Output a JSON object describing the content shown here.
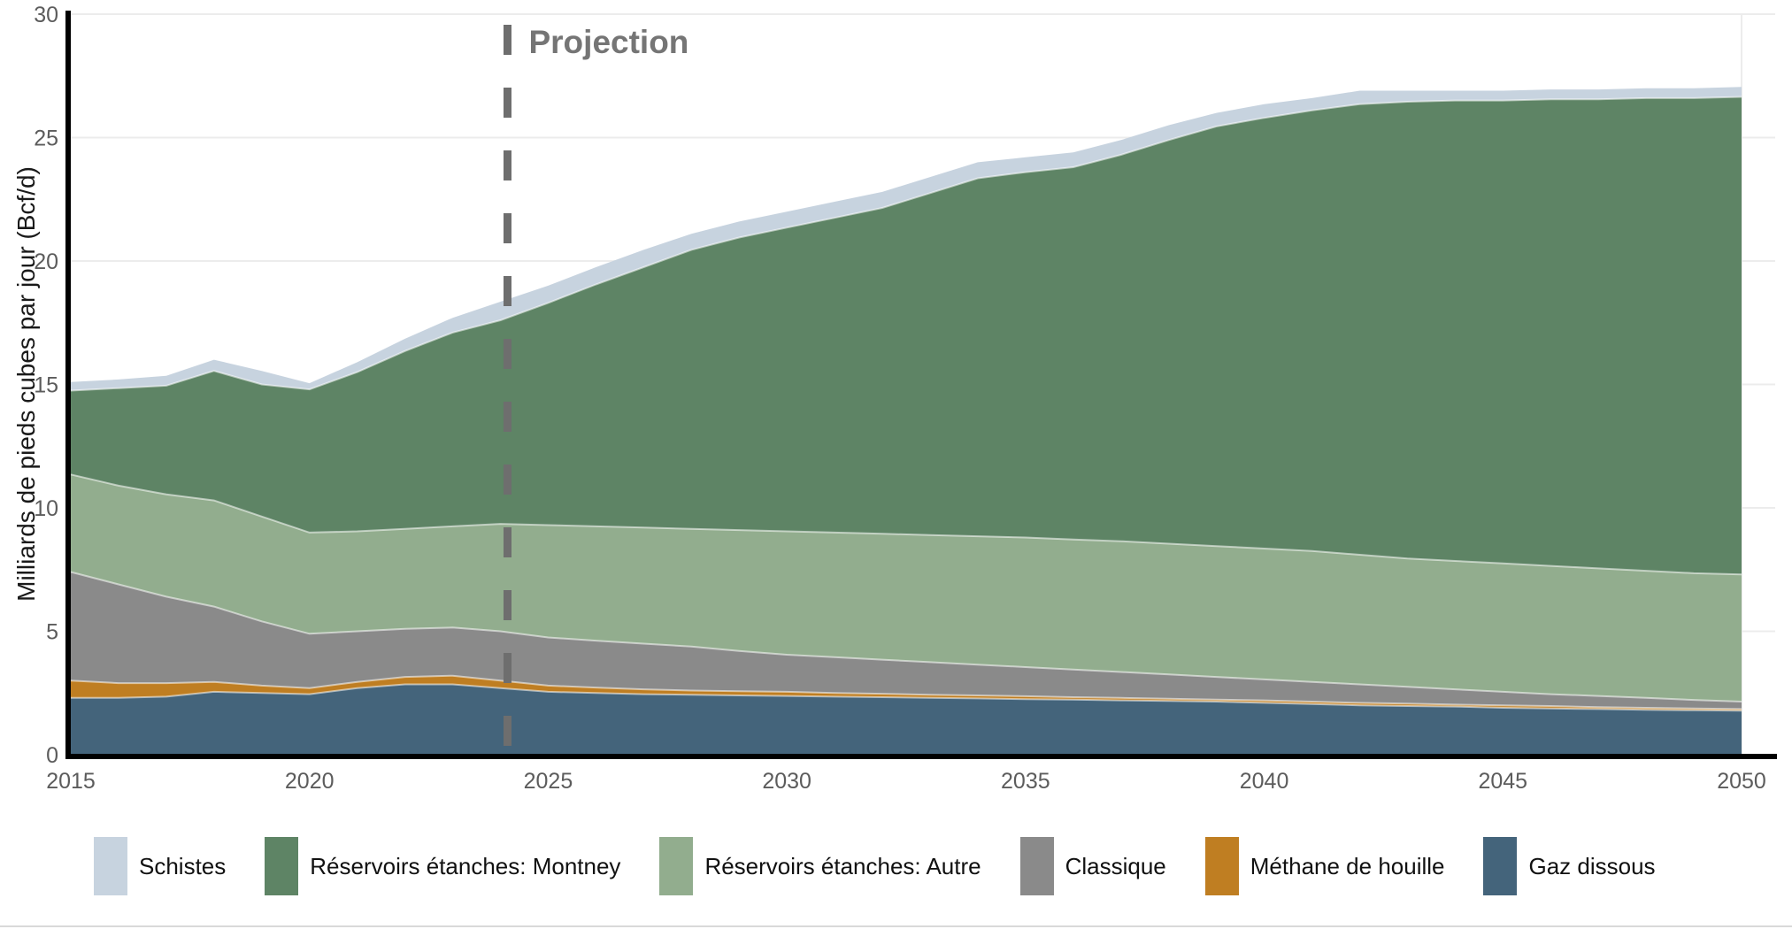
{
  "figure": {
    "ylabel": "Milliards de pieds cubes par jour (Bcf/d)",
    "projection_label": "Projection"
  },
  "chart_data": {
    "type": "area",
    "stacked": true,
    "title": "",
    "xlabel": "",
    "ylabel": "Milliards de pieds cubes par jour (Bcf/d)",
    "ylim": [
      0,
      30
    ],
    "yticks": [
      0,
      5,
      10,
      15,
      20,
      25,
      30
    ],
    "xticks": [
      2015,
      2020,
      2025,
      2030,
      2035,
      2040,
      2045,
      2050
    ],
    "grid": "horizontal",
    "legend_position": "bottom",
    "annotations": [
      {
        "label": "Projection",
        "x": 2024,
        "style": "dashed-vertical-line",
        "color": "#6e6e6e"
      }
    ],
    "x": [
      2015,
      2016,
      2017,
      2018,
      2019,
      2020,
      2021,
      2022,
      2023,
      2024,
      2025,
      2026,
      2027,
      2028,
      2029,
      2030,
      2031,
      2032,
      2033,
      2034,
      2035,
      2036,
      2037,
      2038,
      2039,
      2040,
      2041,
      2042,
      2043,
      2044,
      2045,
      2046,
      2047,
      2048,
      2049,
      2050
    ],
    "series": [
      {
        "id": "gaz-dissous",
        "name": "Gaz dissous",
        "color": "#44647b",
        "values": [
          2.3,
          2.3,
          2.35,
          2.55,
          2.5,
          2.45,
          2.7,
          2.85,
          2.85,
          2.7,
          2.55,
          2.5,
          2.45,
          2.43,
          2.4,
          2.38,
          2.35,
          2.33,
          2.3,
          2.28,
          2.25,
          2.23,
          2.2,
          2.18,
          2.15,
          2.1,
          2.05,
          2.0,
          1.97,
          1.95,
          1.9,
          1.87,
          1.85,
          1.82,
          1.8,
          1.78
        ]
      },
      {
        "id": "methane-de-houille",
        "name": "Méthane de houille",
        "color": "#bf7e22",
        "values": [
          0.7,
          0.6,
          0.55,
          0.4,
          0.3,
          0.25,
          0.25,
          0.3,
          0.35,
          0.3,
          0.25,
          0.22,
          0.2,
          0.17,
          0.17,
          0.17,
          0.15,
          0.14,
          0.13,
          0.12,
          0.12,
          0.1,
          0.1,
          0.09,
          0.08,
          0.1,
          0.1,
          0.1,
          0.1,
          0.08,
          0.1,
          0.1,
          0.08,
          0.08,
          0.07,
          0.07
        ]
      },
      {
        "id": "classique",
        "name": "Classique",
        "color": "#8a8a8a",
        "values": [
          4.4,
          4.0,
          3.5,
          3.05,
          2.6,
          2.2,
          2.05,
          1.95,
          1.95,
          2.0,
          1.95,
          1.9,
          1.85,
          1.78,
          1.63,
          1.5,
          1.45,
          1.38,
          1.32,
          1.25,
          1.18,
          1.12,
          1.05,
          0.98,
          0.92,
          0.85,
          0.8,
          0.75,
          0.68,
          0.62,
          0.55,
          0.48,
          0.45,
          0.4,
          0.35,
          0.3
        ]
      },
      {
        "id": "reservoirs-etanches-autre",
        "name": "Réservoirs étanches: Autre",
        "color": "#92ad8e",
        "values": [
          3.95,
          4.0,
          4.15,
          4.3,
          4.25,
          4.1,
          4.05,
          4.05,
          4.1,
          4.35,
          4.55,
          4.63,
          4.7,
          4.77,
          4.9,
          5.0,
          5.05,
          5.1,
          5.15,
          5.2,
          5.25,
          5.27,
          5.3,
          5.3,
          5.3,
          5.3,
          5.3,
          5.25,
          5.2,
          5.2,
          5.2,
          5.2,
          5.17,
          5.15,
          5.13,
          5.15
        ]
      },
      {
        "id": "reservoirs-etanches-montney",
        "name": "Réservoirs étanches: Montney",
        "color": "#5e8465",
        "values": [
          3.4,
          3.95,
          4.4,
          5.25,
          5.35,
          5.8,
          6.45,
          7.2,
          7.85,
          8.25,
          9.0,
          9.8,
          10.55,
          11.3,
          11.85,
          12.3,
          12.75,
          13.2,
          13.85,
          14.5,
          14.8,
          15.08,
          15.65,
          16.35,
          17.0,
          17.45,
          17.85,
          18.25,
          18.5,
          18.65,
          18.75,
          18.9,
          19.0,
          19.15,
          19.25,
          19.35
        ]
      },
      {
        "id": "schistes",
        "name": "Schistes",
        "color": "#c7d3df",
        "values": [
          0.35,
          0.35,
          0.4,
          0.45,
          0.55,
          0.25,
          0.4,
          0.5,
          0.6,
          0.75,
          0.7,
          0.7,
          0.7,
          0.65,
          0.65,
          0.65,
          0.65,
          0.65,
          0.65,
          0.65,
          0.6,
          0.6,
          0.6,
          0.6,
          0.55,
          0.55,
          0.5,
          0.55,
          0.45,
          0.4,
          0.4,
          0.4,
          0.4,
          0.4,
          0.4,
          0.4
        ]
      }
    ]
  },
  "legend": {
    "items": [
      {
        "id": "schistes",
        "label": "Schistes",
        "color": "#c7d3df"
      },
      {
        "id": "reservoirs-etanches-montney",
        "label": "Réservoirs étanches: Montney",
        "color": "#5e8465"
      },
      {
        "id": "reservoirs-etanches-autre",
        "label": "Réservoirs étanches: Autre",
        "color": "#92ad8e"
      },
      {
        "id": "classique",
        "label": "Classique",
        "color": "#8a8a8a"
      },
      {
        "id": "methane-de-houille",
        "label": "Méthane de houille",
        "color": "#bf7e22"
      },
      {
        "id": "gaz-dissous",
        "label": "Gaz dissous",
        "color": "#44647b"
      }
    ]
  },
  "style": {
    "axis_line_color": "#000000",
    "gridline_color": "#ececec",
    "tick_label_color": "#5c5c5c",
    "projection_text_color": "#757575"
  }
}
